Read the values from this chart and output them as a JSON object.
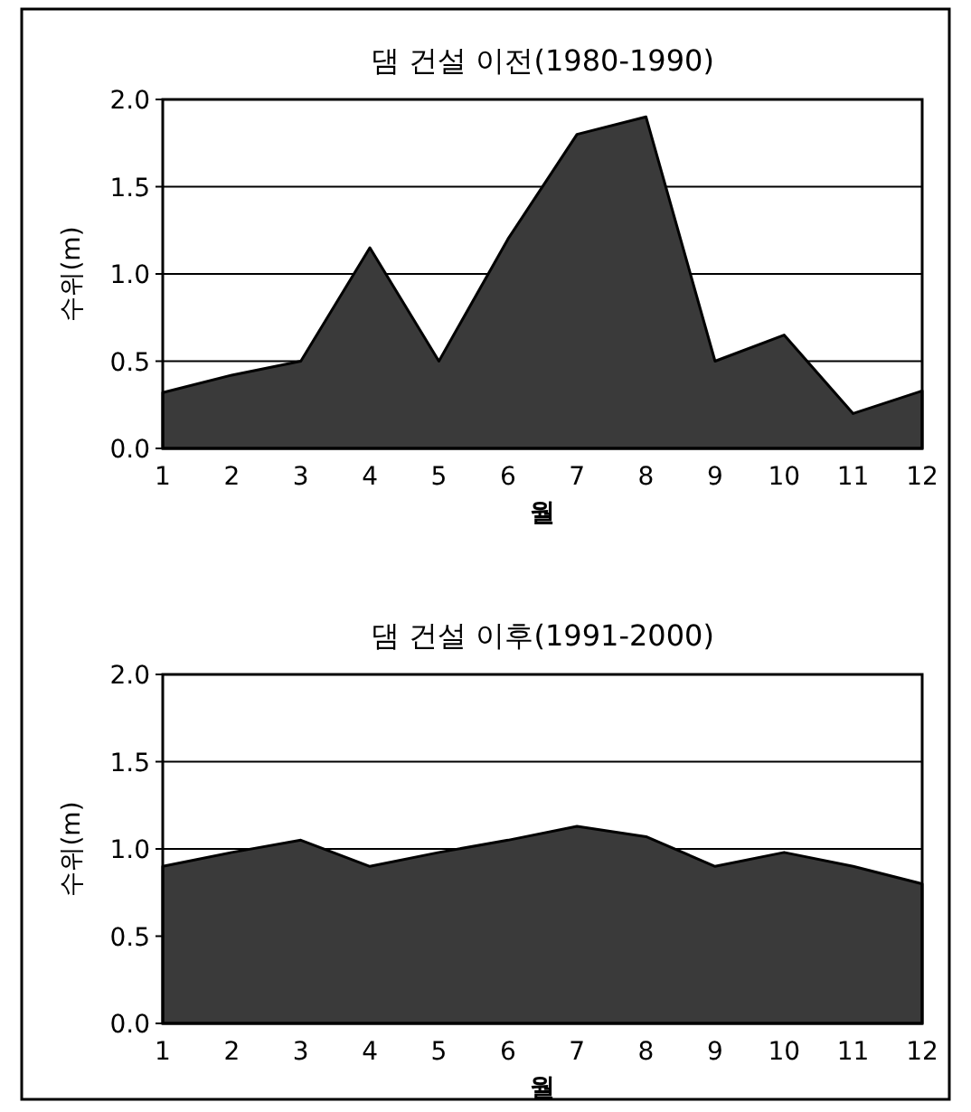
{
  "chart_data": [
    {
      "type": "area",
      "title": "댐 건설 이전(1980-1990)",
      "xlabel": "월",
      "ylabel": "수위(m)",
      "categories": [
        "1",
        "2",
        "3",
        "4",
        "5",
        "6",
        "7",
        "8",
        "9",
        "10",
        "11",
        "12"
      ],
      "series": [
        {
          "color": "#3a3a3a",
          "values": [
            0.32,
            0.42,
            0.5,
            1.15,
            0.5,
            1.2,
            1.8,
            1.9,
            0.5,
            0.65,
            0.2,
            0.33
          ]
        }
      ],
      "ylim": [
        0,
        2
      ],
      "yticks": [
        {
          "value": 0,
          "label": "0.0"
        },
        {
          "value": 0.5,
          "label": "0.5"
        },
        {
          "value": 1,
          "label": "1.0"
        },
        {
          "value": 1.5,
          "label": "1.5"
        },
        {
          "value": 2,
          "label": "2.0"
        }
      ],
      "grid": "y"
    },
    {
      "type": "area",
      "title": "댐 건설 이후(1991-2000)",
      "xlabel": "월",
      "ylabel": "수위(m)",
      "categories": [
        "1",
        "2",
        "3",
        "4",
        "5",
        "6",
        "7",
        "8",
        "9",
        "10",
        "11",
        "12"
      ],
      "series": [
        {
          "color": "#3a3a3a",
          "values": [
            0.9,
            0.98,
            1.05,
            0.9,
            0.98,
            1.05,
            1.13,
            1.07,
            0.9,
            0.98,
            0.9,
            0.8
          ]
        }
      ],
      "ylim": [
        0,
        2
      ],
      "yticks": [
        {
          "value": 0,
          "label": "0.0"
        },
        {
          "value": 0.5,
          "label": "0.5"
        },
        {
          "value": 1,
          "label": "1.0"
        },
        {
          "value": 1.5,
          "label": "1.5"
        },
        {
          "value": 2,
          "label": "2.0"
        }
      ],
      "grid": "y"
    }
  ]
}
